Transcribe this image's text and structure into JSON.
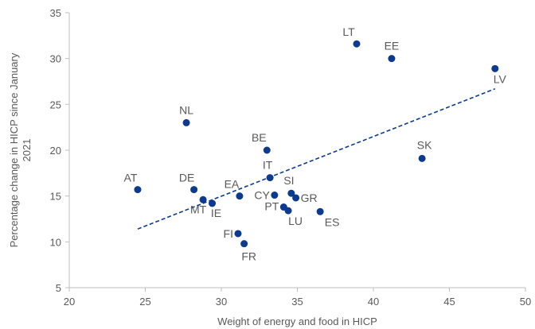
{
  "colors": {
    "point": "#0b3a8f",
    "trend": "#0b3a8f",
    "text": "#595959",
    "axis": "#bfbfbf"
  },
  "chart_data": {
    "type": "scatter",
    "title": "",
    "xlabel": "Weight of energy and food in HICP",
    "ylabel": "Percentage change in HICP since January 2021",
    "xlim": [
      20,
      50
    ],
    "ylim": [
      5,
      35
    ],
    "xticks": [
      20,
      25,
      30,
      35,
      40,
      45,
      50
    ],
    "yticks": [
      5,
      10,
      15,
      20,
      25,
      30,
      35
    ],
    "grid": false,
    "points": [
      {
        "label": "LT",
        "x": 38.9,
        "y": 31.6
      },
      {
        "label": "EE",
        "x": 41.2,
        "y": 30.0
      },
      {
        "label": "LV",
        "x": 48.0,
        "y": 28.9
      },
      {
        "label": "NL",
        "x": 27.7,
        "y": 23.0
      },
      {
        "label": "BE",
        "x": 33.0,
        "y": 20.0
      },
      {
        "label": "SK",
        "x": 43.2,
        "y": 19.1
      },
      {
        "label": "IT",
        "x": 33.2,
        "y": 17.0
      },
      {
        "label": "AT",
        "x": 24.5,
        "y": 15.7
      },
      {
        "label": "DE",
        "x": 28.2,
        "y": 15.7
      },
      {
        "label": "SI",
        "x": 34.6,
        "y": 15.3
      },
      {
        "label": "CY",
        "x": 33.5,
        "y": 15.1
      },
      {
        "label": "EA",
        "x": 31.2,
        "y": 15.0
      },
      {
        "label": "GR",
        "x": 34.9,
        "y": 14.8
      },
      {
        "label": "MT",
        "x": 28.8,
        "y": 14.6
      },
      {
        "label": "IE",
        "x": 29.4,
        "y": 14.2
      },
      {
        "label": "PT",
        "x": 34.1,
        "y": 13.8
      },
      {
        "label": "LU",
        "x": 34.4,
        "y": 13.4
      },
      {
        "label": "ES",
        "x": 36.5,
        "y": 13.3
      },
      {
        "label": "FI",
        "x": 31.1,
        "y": 10.9
      },
      {
        "label": "FR",
        "x": 31.5,
        "y": 9.8
      }
    ],
    "trendline": {
      "x": [
        24.5,
        48.0
      ],
      "y": [
        11.4,
        26.7
      ],
      "style": "dashed"
    }
  }
}
